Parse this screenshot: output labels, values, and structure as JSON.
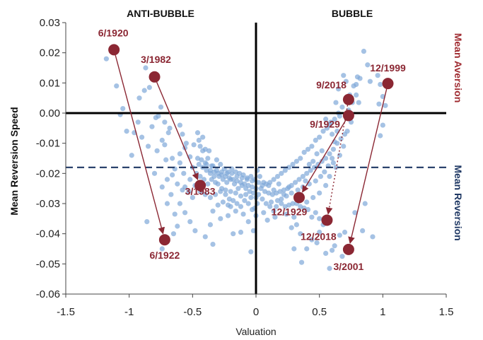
{
  "chart_data": {
    "type": "scatter",
    "title": "",
    "xlabel": "Valuation",
    "ylabel": "Mean Reversion Speed",
    "xlim": [
      -1.5,
      1.5
    ],
    "ylim": [
      -0.06,
      0.03
    ],
    "xticks": [
      -1.5,
      -1,
      -0.5,
      0,
      0.5,
      1,
      1.5
    ],
    "xtick_labels": [
      "-1.5",
      "-1",
      "-0.5",
      "0",
      "0.5",
      "1",
      "1.5"
    ],
    "yticks": [
      0.03,
      0.02,
      0.01,
      0.0,
      -0.01,
      -0.02,
      -0.03,
      -0.04,
      -0.05,
      -0.06
    ],
    "ytick_labels": [
      "0.03",
      "0.02",
      "0.01",
      "0.00",
      "-0.01",
      "-0.02",
      "-0.03",
      "-0.04",
      "-0.05",
      "-0.06"
    ],
    "grid": false,
    "region_labels": {
      "left": "ANTI-BUBBLE",
      "right": "BUBBLE"
    },
    "side_labels": {
      "top": "Mean Aversion",
      "bottom": "Mean Reversion"
    },
    "reference_line_y": -0.018,
    "colors": {
      "points": "#7FA8D8",
      "highlight": "#8B2733",
      "axis": "#000000",
      "dashed": "#1F3864",
      "aversion_text": "#A02C32",
      "reversion_text": "#1F3864"
    },
    "highlighted_points": [
      {
        "label": "6/1920",
        "x": -1.12,
        "y": 0.021
      },
      {
        "label": "6/1922",
        "x": -0.72,
        "y": -0.042
      },
      {
        "label": "3/1982",
        "x": -0.8,
        "y": 0.012
      },
      {
        "label": "3/1983",
        "x": -0.44,
        "y": -0.024
      },
      {
        "label": "9/2018",
        "x": 0.73,
        "y": 0.0045
      },
      {
        "label": "12/2018",
        "x": 0.56,
        "y": -0.0355
      },
      {
        "label": "9/1929",
        "x": 0.73,
        "y": -0.0008
      },
      {
        "label": "12/1929",
        "x": 0.34,
        "y": -0.028
      },
      {
        "label": "12/1999",
        "x": 1.04,
        "y": 0.0098
      },
      {
        "label": "3/2001",
        "x": 0.73,
        "y": -0.0452
      }
    ],
    "arrows": [
      {
        "from": "6/1920",
        "to": "6/1922",
        "style": "solid"
      },
      {
        "from": "3/1982",
        "to": "3/1983",
        "style": "solid"
      },
      {
        "from": "9/1929",
        "to": "12/1929",
        "style": "solid"
      },
      {
        "from": "9/2018",
        "to": "12/2018",
        "style": "dotted"
      },
      {
        "from": "12/1999",
        "to": "3/2001",
        "style": "solid"
      }
    ],
    "scatter_points": [
      [
        -1.18,
        0.018
      ],
      [
        -1.1,
        0.009
      ],
      [
        -1.05,
        0.0015
      ],
      [
        -1.07,
        -0.0005
      ],
      [
        -1.02,
        -0.006
      ],
      [
        -0.98,
        -0.014
      ],
      [
        -0.92,
        0.005
      ],
      [
        -0.87,
        0.015
      ],
      [
        -0.84,
        0.0085
      ],
      [
        -0.88,
        0.0075
      ],
      [
        -0.93,
        -0.003
      ],
      [
        -0.9,
        -0.008
      ],
      [
        -0.85,
        -0.011
      ],
      [
        -0.8,
        -0.02
      ],
      [
        -0.86,
        -0.036
      ],
      [
        -0.7,
        -0.03
      ],
      [
        -0.74,
        -0.045
      ],
      [
        -0.65,
        -0.04
      ],
      [
        -0.62,
        -0.0375
      ],
      [
        -0.77,
        -0.001
      ],
      [
        -0.72,
        -0.003
      ],
      [
        -0.68,
        -0.005
      ],
      [
        -0.74,
        -0.009
      ],
      [
        -0.78,
        -0.0125
      ],
      [
        -0.66,
        -0.015
      ],
      [
        -0.7,
        -0.022
      ],
      [
        -0.74,
        -0.0245
      ],
      [
        -0.6,
        -0.03
      ],
      [
        -0.56,
        -0.033
      ],
      [
        -0.52,
        -0.036
      ],
      [
        -0.48,
        -0.039
      ],
      [
        -0.4,
        -0.041
      ],
      [
        -0.34,
        -0.0435
      ],
      [
        -0.36,
        -0.037
      ],
      [
        -0.28,
        -0.035
      ],
      [
        -0.22,
        -0.034
      ],
      [
        -0.18,
        -0.04
      ],
      [
        -0.2,
        -0.031
      ],
      [
        -0.6,
        -0.004
      ],
      [
        -0.58,
        -0.007
      ],
      [
        -0.55,
        -0.01
      ],
      [
        -0.6,
        -0.0165
      ],
      [
        -0.57,
        -0.02
      ],
      [
        -0.56,
        -0.0245
      ],
      [
        -0.53,
        -0.026
      ],
      [
        -0.5,
        -0.028
      ],
      [
        -0.46,
        -0.0065
      ],
      [
        -0.42,
        -0.008
      ],
      [
        -0.4,
        -0.012
      ],
      [
        -0.38,
        -0.015
      ],
      [
        -0.36,
        -0.019
      ],
      [
        -0.33,
        -0.021
      ],
      [
        -0.3,
        -0.0235
      ],
      [
        -0.27,
        -0.025
      ],
      [
        -0.24,
        -0.027
      ],
      [
        -0.21,
        -0.0285
      ],
      [
        -0.18,
        -0.029
      ],
      [
        -0.15,
        -0.03
      ],
      [
        -0.12,
        -0.031
      ],
      [
        -0.09,
        -0.029
      ],
      [
        -0.06,
        -0.03
      ],
      [
        -0.03,
        -0.032
      ],
      [
        0.0,
        -0.034
      ],
      [
        -0.02,
        -0.039
      ],
      [
        -0.04,
        -0.046
      ],
      [
        -0.12,
        -0.0395
      ],
      [
        -0.5,
        -0.018
      ],
      [
        -0.47,
        -0.02
      ],
      [
        -0.44,
        -0.021
      ],
      [
        -0.41,
        -0.022
      ],
      [
        -0.38,
        -0.0235
      ],
      [
        -0.35,
        -0.022
      ],
      [
        -0.32,
        -0.023
      ],
      [
        -0.29,
        -0.021
      ],
      [
        -0.26,
        -0.022
      ],
      [
        -0.23,
        -0.023
      ],
      [
        -0.2,
        -0.022
      ],
      [
        -0.17,
        -0.0235
      ],
      [
        -0.14,
        -0.025
      ],
      [
        -0.11,
        -0.024
      ],
      [
        -0.08,
        -0.025
      ],
      [
        -0.05,
        -0.026
      ],
      [
        -0.02,
        -0.0265
      ],
      [
        -0.45,
        -0.017
      ],
      [
        -0.42,
        -0.018
      ],
      [
        -0.39,
        -0.019
      ],
      [
        -0.36,
        -0.02
      ],
      [
        -0.33,
        -0.0195
      ],
      [
        -0.3,
        -0.02
      ],
      [
        -0.27,
        -0.0205
      ],
      [
        -0.24,
        -0.021
      ],
      [
        -0.21,
        -0.0215
      ],
      [
        -0.18,
        -0.022
      ],
      [
        -0.15,
        -0.0225
      ],
      [
        -0.12,
        -0.023
      ],
      [
        -0.09,
        -0.0235
      ],
      [
        -0.06,
        -0.024
      ],
      [
        -0.03,
        -0.0245
      ],
      [
        0.0,
        -0.025
      ],
      [
        -0.52,
        -0.022
      ],
      [
        -0.48,
        -0.024
      ],
      [
        -0.44,
        -0.026
      ],
      [
        -0.4,
        -0.027
      ],
      [
        -0.36,
        -0.028
      ],
      [
        -0.32,
        -0.027
      ],
      [
        -0.28,
        -0.026
      ],
      [
        -0.24,
        -0.0255
      ],
      [
        -0.2,
        -0.026
      ],
      [
        -0.16,
        -0.0265
      ],
      [
        -0.12,
        -0.0275
      ],
      [
        -0.08,
        -0.027
      ],
      [
        -0.04,
        -0.028
      ],
      [
        -0.42,
        -0.0125
      ],
      [
        -0.46,
        -0.015
      ],
      [
        -0.44,
        -0.011
      ],
      [
        -0.39,
        -0.017
      ],
      [
        -0.35,
        -0.0175
      ],
      [
        -0.31,
        -0.019
      ],
      [
        -0.27,
        -0.0195
      ],
      [
        -0.23,
        -0.02
      ],
      [
        -0.19,
        -0.02
      ],
      [
        -0.15,
        -0.021
      ],
      [
        -0.11,
        -0.0215
      ],
      [
        -0.07,
        -0.022
      ],
      [
        -0.03,
        -0.0225
      ],
      [
        0.02,
        -0.023
      ],
      [
        0.05,
        -0.024
      ],
      [
        0.08,
        -0.0235
      ],
      [
        0.11,
        -0.023
      ],
      [
        0.14,
        -0.022
      ],
      [
        0.17,
        -0.021
      ],
      [
        0.2,
        -0.02
      ],
      [
        0.23,
        -0.019
      ],
      [
        0.26,
        -0.018
      ],
      [
        0.29,
        -0.017
      ],
      [
        0.32,
        -0.016
      ],
      [
        0.35,
        -0.015
      ],
      [
        0.38,
        -0.013
      ],
      [
        0.41,
        -0.012
      ],
      [
        0.44,
        -0.011
      ],
      [
        0.47,
        -0.009
      ],
      [
        0.5,
        -0.008
      ],
      [
        0.53,
        -0.006
      ],
      [
        0.56,
        -0.005
      ],
      [
        0.59,
        -0.003
      ],
      [
        0.62,
        -0.002
      ],
      [
        0.65,
        0.0
      ],
      [
        0.68,
        0.002
      ],
      [
        0.71,
        0.004
      ],
      [
        0.74,
        0.006
      ],
      [
        0.77,
        0.009
      ],
      [
        0.8,
        0.012
      ],
      [
        0.85,
        0.0205
      ],
      [
        0.88,
        0.016
      ],
      [
        0.82,
        0.0115
      ],
      [
        0.79,
        0.0095
      ],
      [
        0.9,
        0.0105
      ],
      [
        0.96,
        0.0125
      ],
      [
        0.98,
        0.0095
      ],
      [
        1.0,
        0.0055
      ],
      [
        0.97,
        0.003
      ],
      [
        1.02,
        0.0025
      ],
      [
        0.98,
        -0.0075
      ],
      [
        1.0,
        -0.004
      ],
      [
        0.86,
        -0.03
      ],
      [
        0.84,
        -0.039
      ],
      [
        0.78,
        -0.033
      ],
      [
        0.92,
        -0.041
      ],
      [
        0.02,
        -0.027
      ],
      [
        0.05,
        -0.0285
      ],
      [
        0.08,
        -0.03
      ],
      [
        0.11,
        -0.031
      ],
      [
        0.14,
        -0.0325
      ],
      [
        0.17,
        -0.029
      ],
      [
        0.2,
        -0.03
      ],
      [
        0.23,
        -0.031
      ],
      [
        0.26,
        -0.0305
      ],
      [
        0.29,
        -0.03
      ],
      [
        0.32,
        -0.03
      ],
      [
        0.35,
        -0.031
      ],
      [
        0.38,
        -0.0315
      ],
      [
        0.41,
        -0.032
      ],
      [
        0.44,
        -0.0345
      ],
      [
        0.47,
        -0.033
      ],
      [
        0.5,
        -0.035
      ],
      [
        0.53,
        -0.037
      ],
      [
        0.04,
        -0.025
      ],
      [
        0.07,
        -0.026
      ],
      [
        0.1,
        -0.0265
      ],
      [
        0.13,
        -0.027
      ],
      [
        0.16,
        -0.0265
      ],
      [
        0.19,
        -0.026
      ],
      [
        0.22,
        -0.0255
      ],
      [
        0.25,
        -0.025
      ],
      [
        0.28,
        -0.024
      ],
      [
        0.31,
        -0.023
      ],
      [
        0.34,
        -0.022
      ],
      [
        0.37,
        -0.021
      ],
      [
        0.4,
        -0.02
      ],
      [
        0.43,
        -0.019
      ],
      [
        0.46,
        -0.018
      ],
      [
        0.49,
        -0.017
      ],
      [
        0.52,
        -0.016
      ],
      [
        0.55,
        -0.015
      ],
      [
        0.58,
        -0.0135
      ],
      [
        0.61,
        -0.012
      ],
      [
        0.64,
        -0.01
      ],
      [
        0.67,
        -0.0085
      ],
      [
        0.7,
        -0.007
      ],
      [
        0.55,
        -0.002
      ],
      [
        0.58,
        -0.004
      ],
      [
        0.6,
        -0.007
      ],
      [
        0.62,
        -0.0095
      ],
      [
        0.6,
        -0.015
      ],
      [
        0.63,
        -0.018
      ],
      [
        0.58,
        -0.021
      ],
      [
        0.55,
        -0.024
      ],
      [
        0.5,
        -0.0265
      ],
      [
        0.45,
        -0.028
      ],
      [
        0.4,
        -0.0295
      ],
      [
        0.36,
        -0.0285
      ],
      [
        0.3,
        -0.0345
      ],
      [
        0.32,
        -0.037
      ],
      [
        0.28,
        -0.038
      ],
      [
        0.35,
        -0.04
      ],
      [
        0.3,
        -0.045
      ],
      [
        0.44,
        -0.042
      ],
      [
        0.4,
        -0.045
      ],
      [
        0.48,
        -0.043
      ],
      [
        0.36,
        -0.0495
      ],
      [
        0.58,
        -0.0515
      ],
      [
        0.62,
        -0.044
      ],
      [
        0.6,
        -0.0455
      ],
      [
        0.68,
        -0.0475
      ],
      [
        0.5,
        -0.0395
      ],
      [
        0.69,
        0.0125
      ],
      [
        0.71,
        0.0105
      ],
      [
        0.65,
        0.008
      ],
      [
        0.63,
        0.0035
      ],
      [
        0.66,
        -0.001
      ],
      [
        0.64,
        -0.006
      ],
      [
        0.52,
        -0.0125
      ],
      [
        0.48,
        -0.0135
      ],
      [
        0.45,
        -0.016
      ],
      [
        0.42,
        -0.017
      ],
      [
        0.39,
        -0.0225
      ],
      [
        0.26,
        -0.0245
      ],
      [
        0.22,
        -0.027
      ],
      [
        0.18,
        -0.0235
      ],
      [
        0.14,
        -0.0255
      ],
      [
        0.1,
        -0.024
      ],
      [
        0.06,
        -0.023
      ],
      [
        0.03,
        -0.021
      ],
      [
        0.01,
        -0.019
      ],
      [
        -0.01,
        -0.022
      ],
      [
        0.0,
        -0.028
      ],
      [
        0.01,
        -0.03
      ],
      [
        -0.01,
        -0.0315
      ],
      [
        0.12,
        -0.0295
      ],
      [
        0.16,
        -0.031
      ],
      [
        0.2,
        -0.0285
      ],
      [
        0.24,
        -0.0275
      ],
      [
        0.28,
        -0.0265
      ],
      [
        0.33,
        -0.0255
      ],
      [
        0.37,
        -0.0245
      ],
      [
        0.42,
        -0.0235
      ],
      [
        0.47,
        -0.0225
      ],
      [
        0.51,
        -0.021
      ],
      [
        0.54,
        -0.0195
      ],
      [
        0.57,
        -0.0175
      ],
      [
        0.61,
        -0.0165
      ],
      [
        0.66,
        -0.014
      ],
      [
        0.69,
        -0.011
      ],
      [
        0.72,
        -0.006
      ],
      [
        0.75,
        -0.003
      ],
      [
        0.73,
        0.001
      ],
      [
        0.76,
        0.0035
      ],
      [
        0.79,
        0.006
      ],
      [
        0.81,
        0.0035
      ],
      [
        -0.58,
        -0.0255
      ],
      [
        -0.62,
        -0.0235
      ],
      [
        -0.66,
        -0.0205
      ],
      [
        -0.64,
        -0.0185
      ],
      [
        -0.6,
        -0.0135
      ],
      [
        -0.56,
        -0.0115
      ],
      [
        -0.52,
        -0.0145
      ],
      [
        -0.49,
        -0.0105
      ],
      [
        -0.45,
        -0.009
      ],
      [
        -0.43,
        -0.0155
      ],
      [
        -0.4,
        -0.0165
      ],
      [
        -0.37,
        -0.0125
      ],
      [
        -0.34,
        -0.0175
      ],
      [
        -0.31,
        -0.0155
      ],
      [
        -0.28,
        -0.017
      ],
      [
        -0.25,
        -0.0185
      ],
      [
        -0.22,
        -0.0195
      ],
      [
        -0.19,
        -0.0185
      ],
      [
        -0.16,
        -0.0195
      ],
      [
        -0.13,
        -0.02
      ],
      [
        -0.1,
        -0.0205
      ],
      [
        -0.07,
        -0.0215
      ],
      [
        -0.04,
        -0.021
      ],
      [
        -0.34,
        -0.0325
      ],
      [
        -0.3,
        -0.0305
      ],
      [
        -0.26,
        -0.0295
      ],
      [
        -0.22,
        -0.0305
      ],
      [
        -0.16,
        -0.0325
      ],
      [
        -0.1,
        -0.0335
      ],
      [
        -0.06,
        -0.036
      ],
      [
        -0.69,
        -0.0065
      ],
      [
        -0.71,
        -0.0155
      ],
      [
        -0.67,
        -0.027
      ],
      [
        -0.64,
        -0.0335
      ],
      [
        -0.96,
        -0.0065
      ],
      [
        -0.82,
        -0.0045
      ],
      [
        -0.79,
        -0.0015
      ],
      [
        -0.75,
        0.002
      ],
      [
        -0.72,
        -0.0105
      ],
      [
        0.06,
        -0.033
      ],
      [
        0.09,
        -0.0355
      ],
      [
        0.15,
        -0.0345
      ],
      [
        0.24,
        -0.0335
      ],
      [
        0.55,
        -0.0465
      ],
      [
        0.66,
        -0.0405
      ],
      [
        0.7,
        -0.0395
      ]
    ]
  }
}
